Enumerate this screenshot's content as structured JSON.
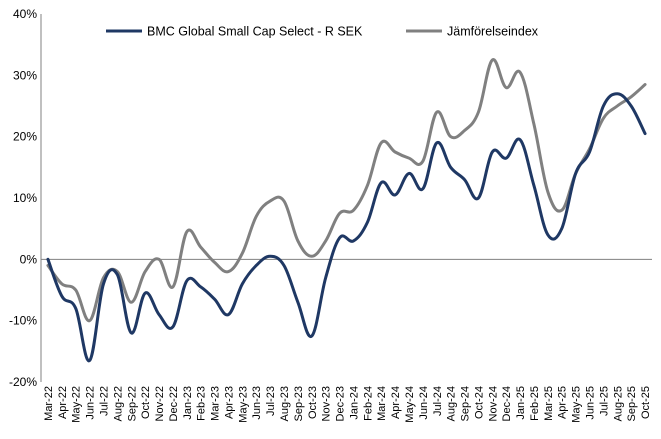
{
  "chart_data": {
    "type": "line",
    "title": "",
    "xlabel": "",
    "ylabel": "",
    "ylim": [
      -20,
      40
    ],
    "yticks": [
      -20,
      -10,
      0,
      10,
      20,
      30,
      40
    ],
    "ytick_labels": [
      "-20%",
      "-10%",
      "0%",
      "10%",
      "20%",
      "30%",
      "40%"
    ],
    "grid": false,
    "legend_position": "top",
    "categories": [
      "Mar-22",
      "Apr-22",
      "May-22",
      "Jun-22",
      "Jul-22",
      "Aug-22",
      "Sep-22",
      "Oct-22",
      "Nov-22",
      "Dec-22",
      "Jan-23",
      "Feb-23",
      "Mar-23",
      "Apr-23",
      "May-23",
      "Jun-23",
      "Jul-23",
      "Aug-23",
      "Sep-23",
      "Oct-23",
      "Nov-23",
      "Dec-23",
      "Jan-24",
      "Feb-24",
      "Mar-24",
      "Apr-24",
      "May-24",
      "Jun-24",
      "Jul-24",
      "Aug-24",
      "Sep-24",
      "Oct-24",
      "Nov-24",
      "Dec-24",
      "Jan-25",
      "Feb-25",
      "Mar-25",
      "Apr-25",
      "May-25",
      "Jun-25",
      "Jul-25",
      "Aug-25",
      "Sep-25",
      "Oct-25"
    ],
    "series": [
      {
        "name": "BMC Global Small Cap Select - R SEK",
        "color": "#1f3864",
        "values": [
          0,
          -6,
          -8,
          -16.5,
          -4,
          -2.5,
          -12,
          -5.5,
          -9,
          -11,
          -3.5,
          -4.5,
          -6.5,
          -9,
          -4,
          -1,
          0.5,
          -1,
          -7,
          -12.5,
          -3,
          3.5,
          3,
          6,
          12.5,
          10.5,
          14,
          11.5,
          19,
          15,
          13,
          10,
          17.5,
          16.5,
          19.5,
          12,
          4,
          5,
          14,
          17.5,
          25,
          27,
          25,
          20.5
        ]
      },
      {
        "name": "Jämförelseindex",
        "color": "#808080",
        "values": [
          -1,
          -4,
          -5,
          -10,
          -3,
          -2,
          -7,
          -2,
          0,
          -4.5,
          4.5,
          2,
          -0.5,
          -2,
          1,
          7,
          9.5,
          9.5,
          3,
          0.5,
          3,
          7.5,
          8,
          12,
          19,
          17.5,
          16.5,
          16,
          24,
          20,
          21,
          24,
          32.5,
          28,
          30.5,
          22,
          11,
          8,
          14,
          18,
          23,
          25,
          26.5,
          28.5
        ]
      }
    ]
  }
}
